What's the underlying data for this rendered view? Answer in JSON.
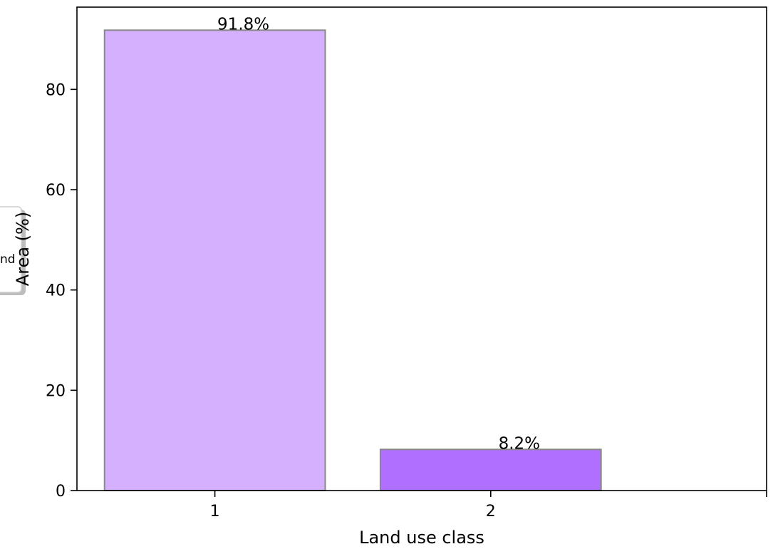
{
  "chart_data": {
    "type": "bar",
    "categories": [
      "1",
      "2"
    ],
    "values": [
      91.8,
      8.2
    ],
    "data_labels": [
      "91.8%",
      "8.2%"
    ],
    "colors": [
      "#d5b0ff",
      "#b16fff"
    ],
    "edge_color": "#888888",
    "xlabel": "Land use class",
    "ylabel": "Area (%)",
    "ylim": [
      0,
      96.4
    ],
    "yticks": [
      0,
      20,
      40,
      60,
      80
    ],
    "xlim": [
      0.5,
      3.0
    ],
    "grid": false,
    "legend": {
      "placement": "left (partially clipped)",
      "visible_text": "nd"
    }
  }
}
